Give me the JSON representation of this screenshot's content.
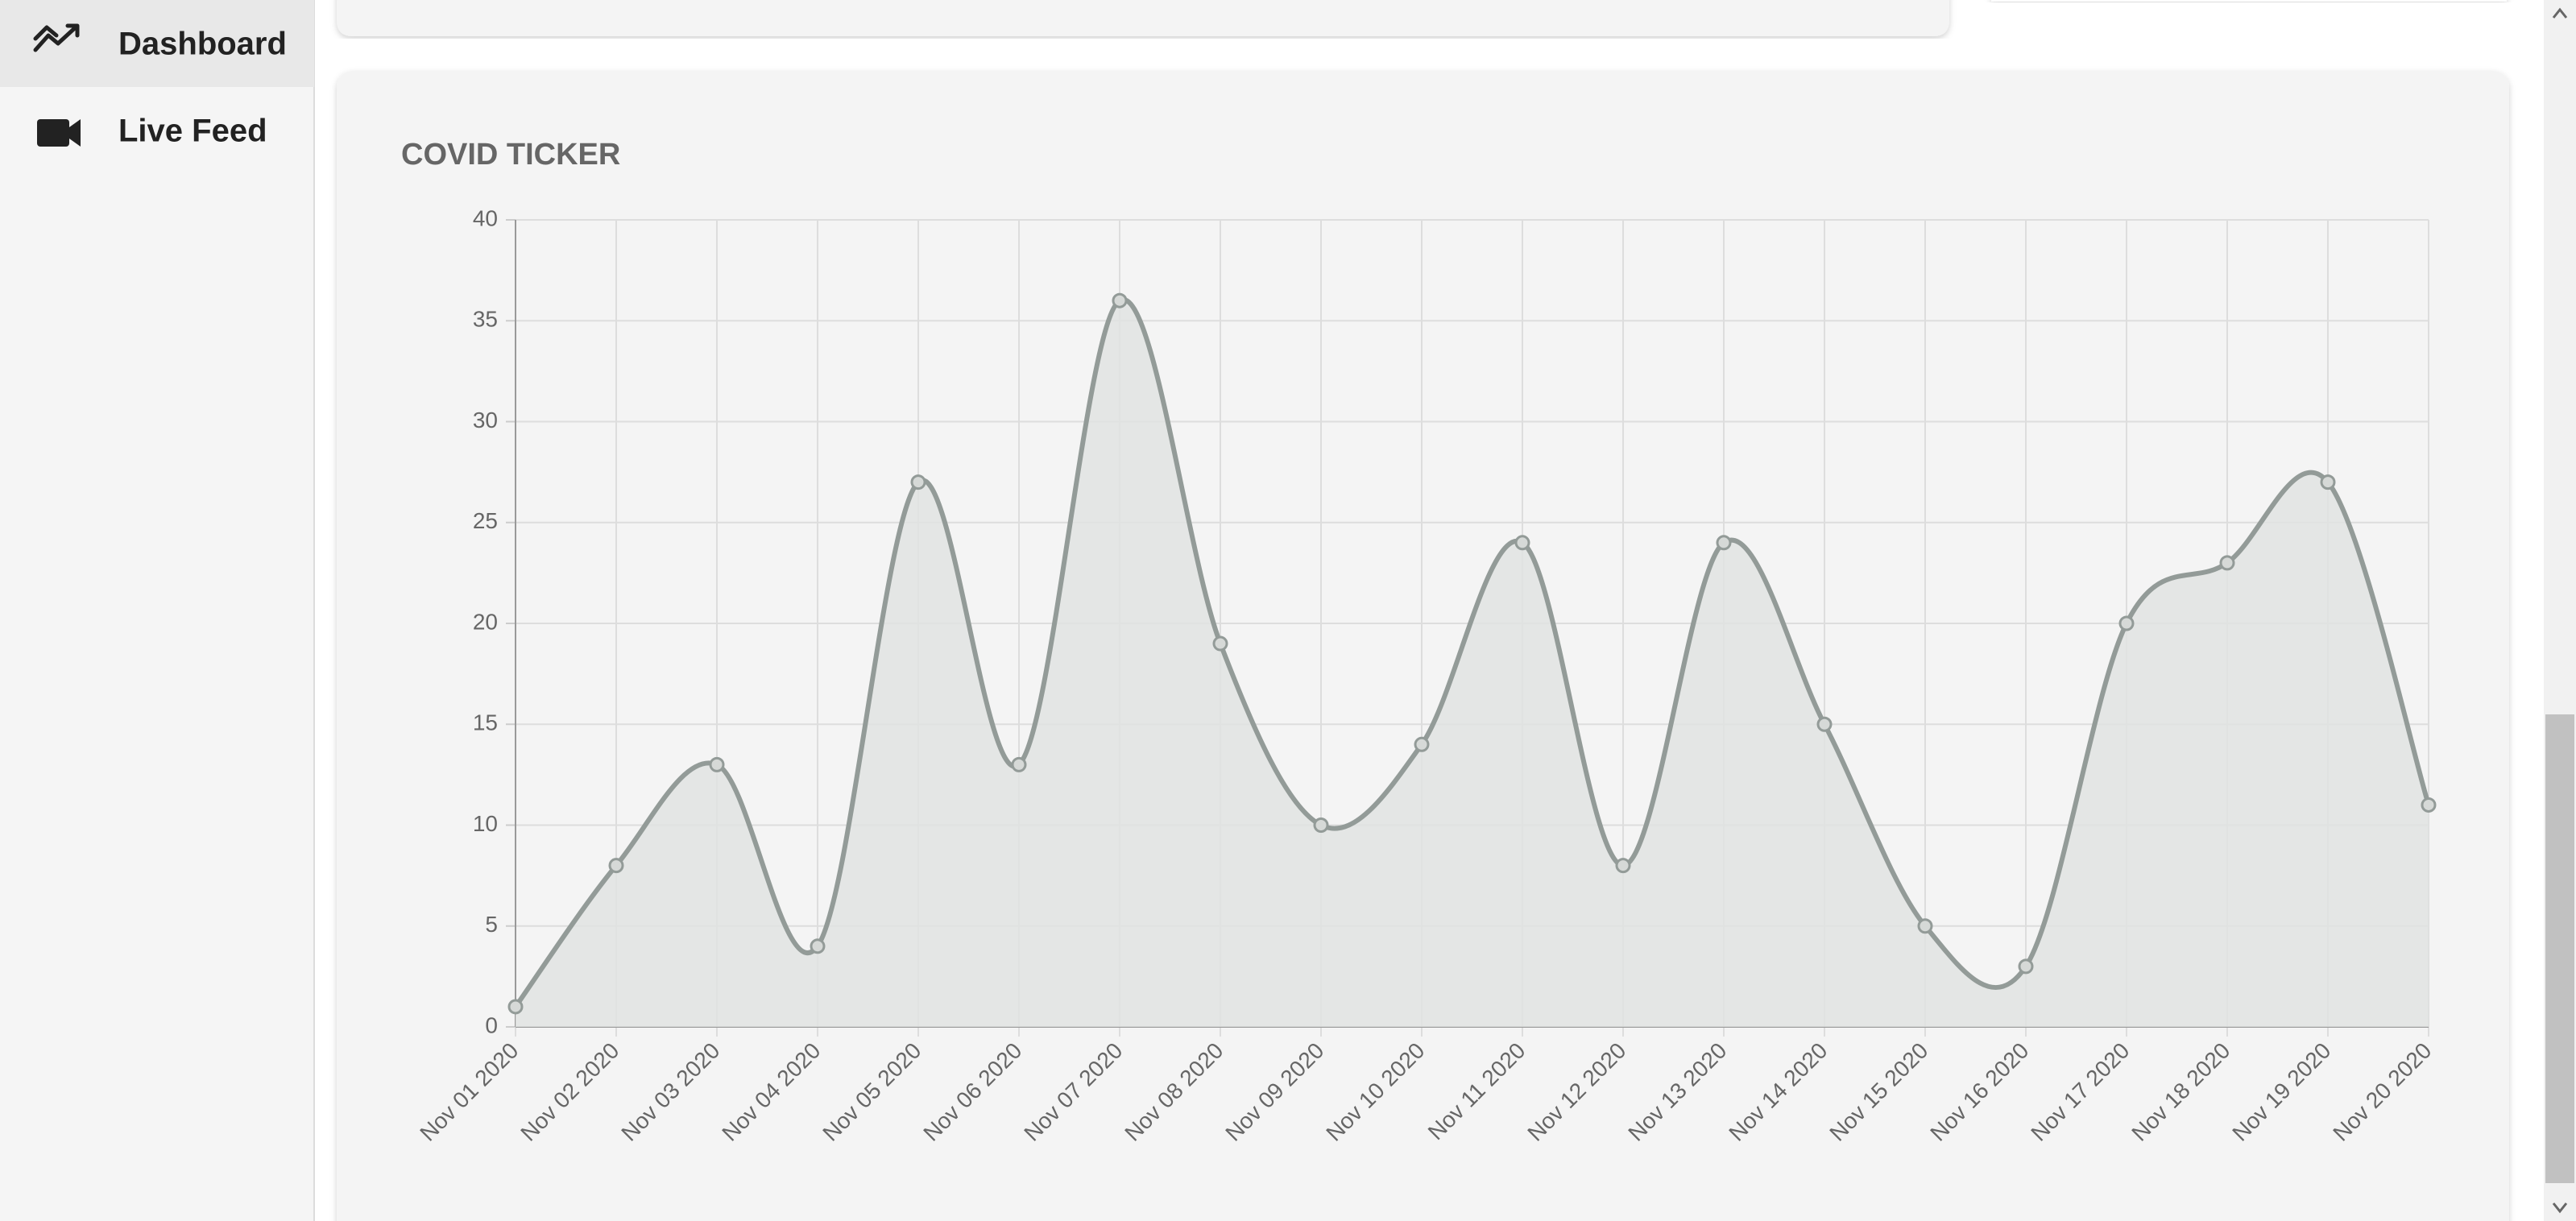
{
  "nav": {
    "items": [
      "Dashboard",
      "Live Feed"
    ]
  },
  "chart_data": {
    "type": "line",
    "title": "COVID TICKER",
    "categories": [
      "Nov 01 2020",
      "Nov 02 2020",
      "Nov 03 2020",
      "Nov 04 2020",
      "Nov 05 2020",
      "Nov 06 2020",
      "Nov 07 2020",
      "Nov 08 2020",
      "Nov 09 2020",
      "Nov 10 2020",
      "Nov 11 2020",
      "Nov 12 2020",
      "Nov 13 2020",
      "Nov 14 2020",
      "Nov 15 2020",
      "Nov 16 2020",
      "Nov 17 2020",
      "Nov 18 2020",
      "Nov 19 2020",
      "Nov 20 2020"
    ],
    "values": [
      1,
      8,
      13,
      4,
      27,
      13,
      36,
      19,
      10,
      14,
      24,
      8,
      24,
      15,
      5,
      3,
      20,
      23,
      27,
      11
    ],
    "color": "#939b98",
    "area_color": "#e1e3e2",
    "ylim": [
      0,
      40
    ],
    "yticks": [
      0,
      5,
      10,
      15,
      20,
      25,
      30,
      35,
      40
    ],
    "grid": true
  }
}
